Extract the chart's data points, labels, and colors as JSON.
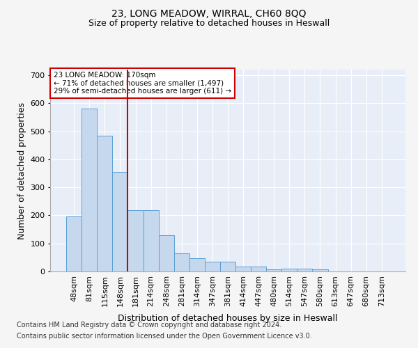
{
  "title1": "23, LONG MEADOW, WIRRAL, CH60 8QQ",
  "title2": "Size of property relative to detached houses in Heswall",
  "xlabel": "Distribution of detached houses by size in Heswall",
  "ylabel": "Number of detached properties",
  "categories": [
    "48sqm",
    "81sqm",
    "115sqm",
    "148sqm",
    "181sqm",
    "214sqm",
    "248sqm",
    "281sqm",
    "314sqm",
    "347sqm",
    "381sqm",
    "414sqm",
    "447sqm",
    "480sqm",
    "514sqm",
    "547sqm",
    "580sqm",
    "613sqm",
    "647sqm",
    "680sqm",
    "713sqm"
  ],
  "values": [
    197,
    580,
    484,
    355,
    218,
    218,
    130,
    65,
    48,
    35,
    35,
    18,
    18,
    7,
    10,
    10,
    7,
    0,
    0,
    0,
    0
  ],
  "bar_color": "#c5d8ee",
  "bar_edge_color": "#5a9fd4",
  "annotation_text": "23 LONG MEADOW: 170sqm\n← 71% of detached houses are smaller (1,497)\n29% of semi-detached houses are larger (611) →",
  "annotation_box_color": "white",
  "annotation_box_edge_color": "#cc0000",
  "footnote1": "Contains HM Land Registry data © Crown copyright and database right 2024.",
  "footnote2": "Contains public sector information licensed under the Open Government Licence v3.0.",
  "ylim": [
    0,
    720
  ],
  "yticks": [
    0,
    100,
    200,
    300,
    400,
    500,
    600,
    700
  ],
  "background_color": "#e8eef8",
  "fig_background": "#f5f5f5",
  "grid_color": "white",
  "title_fontsize": 10,
  "subtitle_fontsize": 9,
  "axis_label_fontsize": 9,
  "tick_fontsize": 8,
  "footnote_fontsize": 7
}
